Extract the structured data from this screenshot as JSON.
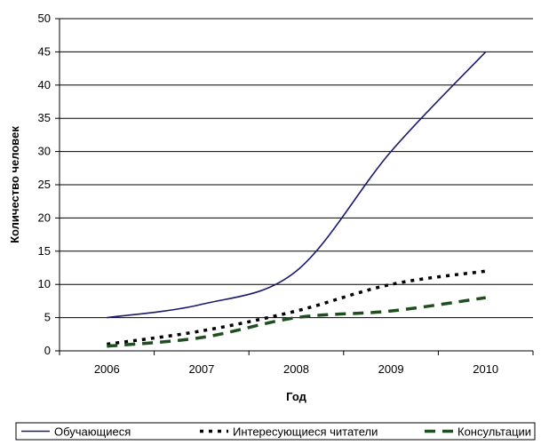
{
  "chart_data": {
    "type": "line",
    "title": "",
    "xlabel": "Год",
    "ylabel": "Количество человек",
    "categories": [
      "2006",
      "2007",
      "2008",
      "2009",
      "2010"
    ],
    "ylim": [
      0,
      50
    ],
    "yticks": [
      0,
      5,
      10,
      15,
      20,
      25,
      30,
      35,
      40,
      45,
      50
    ],
    "grid": "horizontal",
    "legend_position": "bottom",
    "series": [
      {
        "name": "Обучающиеся",
        "values": [
          5,
          7,
          12,
          30,
          45
        ],
        "color": "#1a1a6e",
        "style": "solid"
      },
      {
        "name": "Интересующиеся читатели",
        "values": [
          1,
          3,
          6,
          10,
          12
        ],
        "color": "#000000",
        "style": "dotted"
      },
      {
        "name": "Консультации",
        "values": [
          0.7,
          2,
          5,
          6,
          8
        ],
        "color": "#1f4f1f",
        "style": "dashed"
      }
    ]
  }
}
